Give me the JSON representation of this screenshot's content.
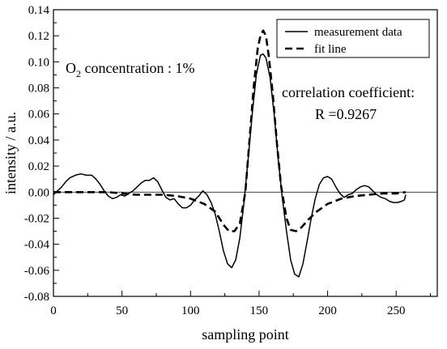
{
  "chart_data": {
    "type": "line",
    "xlabel": "sampling point",
    "ylabel": "intensity / a.u.",
    "xlim": [
      0,
      280
    ],
    "ylim": [
      -0.08,
      0.14
    ],
    "x_ticks": [
      "0",
      "50",
      "100",
      "150",
      "200",
      "250"
    ],
    "x_tick_values": [
      0,
      50,
      100,
      150,
      200,
      250
    ],
    "y_ticks": [
      "0.14",
      "0.12",
      "0.10",
      "0.08",
      "0.06",
      "0.04",
      "0.02",
      "0.00",
      "-0.02",
      "-0.04",
      "-0.06",
      "-0.08"
    ],
    "y_tick_values": [
      0.14,
      0.12,
      0.1,
      0.08,
      0.06,
      0.04,
      0.02,
      0.0,
      -0.02,
      -0.04,
      -0.06,
      -0.08
    ],
    "grid": false,
    "legend": {
      "position": "top-right",
      "entries": [
        "measurement data",
        "fit line"
      ]
    },
    "annotations": {
      "concentration_prefix": "O",
      "concentration_sub": "2",
      "concentration_rest": " concentration : 1%",
      "correlation_label": "correlation coefficient:",
      "correlation_value": "R =0.9267"
    },
    "series": [
      {
        "name": "measurement data",
        "style": "solid",
        "color": "#000000",
        "points": [
          [
            0,
            -0.002
          ],
          [
            3,
            0.001
          ],
          [
            6,
            0.004
          ],
          [
            9,
            0.008
          ],
          [
            12,
            0.011
          ],
          [
            16,
            0.013
          ],
          [
            20,
            0.014
          ],
          [
            24,
            0.013
          ],
          [
            28,
            0.013
          ],
          [
            31,
            0.01
          ],
          [
            34,
            0.006
          ],
          [
            37,
            0.001
          ],
          [
            40,
            -0.003
          ],
          [
            43,
            -0.005
          ],
          [
            46,
            -0.004
          ],
          [
            49,
            -0.002
          ],
          [
            52,
            -0.003
          ],
          [
            55,
            -0.001
          ],
          [
            58,
            0.001
          ],
          [
            61,
            0.004
          ],
          [
            64,
            0.007
          ],
          [
            67,
            0.009
          ],
          [
            70,
            0.009
          ],
          [
            73,
            0.011
          ],
          [
            76,
            0.008
          ],
          [
            79,
            0.002
          ],
          [
            82,
            -0.004
          ],
          [
            85,
            -0.006
          ],
          [
            88,
            -0.005
          ],
          [
            91,
            -0.009
          ],
          [
            94,
            -0.012
          ],
          [
            97,
            -0.012
          ],
          [
            100,
            -0.01
          ],
          [
            103,
            -0.006
          ],
          [
            106,
            -0.003
          ],
          [
            109,
            0.001
          ],
          [
            112,
            -0.002
          ],
          [
            115,
            -0.008
          ],
          [
            118,
            -0.017
          ],
          [
            121,
            -0.03
          ],
          [
            124,
            -0.045
          ],
          [
            127,
            -0.055
          ],
          [
            130,
            -0.058
          ],
          [
            133,
            -0.052
          ],
          [
            136,
            -0.035
          ],
          [
            139,
            -0.008
          ],
          [
            142,
            0.025
          ],
          [
            145,
            0.06
          ],
          [
            148,
            0.09
          ],
          [
            151,
            0.105
          ],
          [
            153,
            0.106
          ],
          [
            155,
            0.103
          ],
          [
            158,
            0.088
          ],
          [
            161,
            0.06
          ],
          [
            164,
            0.025
          ],
          [
            167,
            -0.005
          ],
          [
            170,
            -0.03
          ],
          [
            173,
            -0.052
          ],
          [
            176,
            -0.063
          ],
          [
            179,
            -0.065
          ],
          [
            182,
            -0.055
          ],
          [
            185,
            -0.038
          ],
          [
            188,
            -0.02
          ],
          [
            191,
            -0.005
          ],
          [
            194,
            0.006
          ],
          [
            197,
            0.011
          ],
          [
            200,
            0.012
          ],
          [
            203,
            0.01
          ],
          [
            206,
            0.004
          ],
          [
            209,
            -0.001
          ],
          [
            212,
            -0.004
          ],
          [
            215,
            -0.002
          ],
          [
            218,
            -0.001
          ],
          [
            221,
            0.002
          ],
          [
            224,
            0.004
          ],
          [
            227,
            0.005
          ],
          [
            230,
            0.004
          ],
          [
            233,
            0.001
          ],
          [
            236,
            -0.002
          ],
          [
            239,
            -0.004
          ],
          [
            242,
            -0.005
          ],
          [
            245,
            -0.007
          ],
          [
            248,
            -0.008
          ],
          [
            251,
            -0.008
          ],
          [
            254,
            -0.007
          ],
          [
            256,
            -0.006
          ],
          [
            257,
            -0.002
          ]
        ]
      },
      {
        "name": "fit line",
        "style": "dashed",
        "color": "#000000",
        "points": [
          [
            0,
            0.0
          ],
          [
            10,
            0.0
          ],
          [
            20,
            0.0
          ],
          [
            30,
            0.0
          ],
          [
            40,
            0.0
          ],
          [
            50,
            -0.001
          ],
          [
            60,
            -0.002
          ],
          [
            70,
            -0.002
          ],
          [
            80,
            -0.002
          ],
          [
            90,
            -0.003
          ],
          [
            100,
            -0.005
          ],
          [
            110,
            -0.009
          ],
          [
            118,
            -0.015
          ],
          [
            124,
            -0.025
          ],
          [
            128,
            -0.03
          ],
          [
            132,
            -0.03
          ],
          [
            136,
            -0.024
          ],
          [
            140,
            0.0
          ],
          [
            143,
            0.04
          ],
          [
            146,
            0.08
          ],
          [
            149,
            0.11
          ],
          [
            151,
            0.12
          ],
          [
            153,
            0.124
          ],
          [
            155,
            0.12
          ],
          [
            157,
            0.105
          ],
          [
            160,
            0.075
          ],
          [
            163,
            0.038
          ],
          [
            166,
            0.005
          ],
          [
            170,
            -0.02
          ],
          [
            173,
            -0.029
          ],
          [
            177,
            -0.03
          ],
          [
            181,
            -0.027
          ],
          [
            186,
            -0.021
          ],
          [
            192,
            -0.015
          ],
          [
            200,
            -0.009
          ],
          [
            210,
            -0.005
          ],
          [
            220,
            -0.003
          ],
          [
            230,
            -0.002
          ],
          [
            240,
            -0.001
          ],
          [
            250,
            -0.001
          ],
          [
            257,
            0.0
          ]
        ]
      }
    ]
  }
}
